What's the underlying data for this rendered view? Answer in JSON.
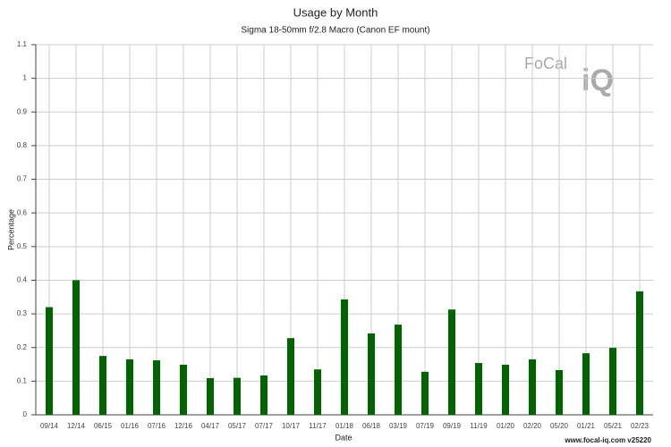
{
  "chart_data": {
    "type": "bar",
    "title": "Usage by Month",
    "subtitle": "Sigma 18-50mm f/2.8 Macro (Canon EF mount)",
    "x_label": "Date",
    "y_label": "Percentage",
    "logo": [
      "FoCal",
      "iQ"
    ],
    "footer": "www.focal-iq.com  v25220",
    "categories": [
      "09/14",
      "12/14",
      "06/15",
      "01/16",
      "07/16",
      "12/16",
      "04/17",
      "05/17",
      "07/17",
      "10/17",
      "11/17",
      "01/18",
      "06/18",
      "03/19",
      "07/19",
      "09/19",
      "11/19",
      "01/20",
      "02/20",
      "05/20",
      "01/21",
      "05/21",
      "02/23"
    ],
    "values": [
      0.32,
      0.4,
      0.175,
      0.165,
      0.162,
      0.149,
      0.109,
      0.11,
      0.117,
      0.228,
      0.135,
      0.343,
      0.242,
      0.268,
      0.128,
      0.313,
      0.154,
      0.149,
      0.165,
      0.133,
      0.183,
      0.199,
      0.367
    ],
    "color": "#006400",
    "ylim": [
      0,
      1.1
    ],
    "yticks": [
      0,
      0.1,
      0.2,
      0.3,
      0.4,
      0.5,
      0.6,
      0.7,
      0.8,
      0.9,
      1,
      1.1
    ],
    "grid": true
  }
}
